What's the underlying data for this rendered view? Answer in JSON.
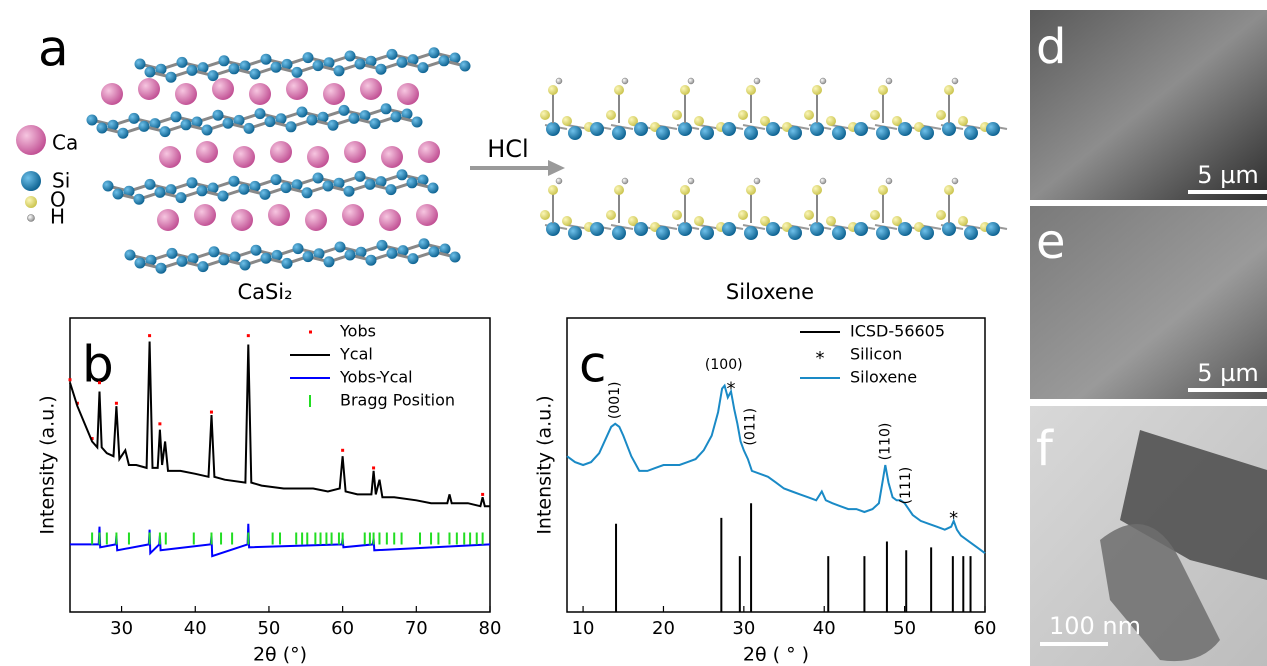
{
  "panel_a": {
    "label": "a",
    "legend": [
      "Ca",
      "Si",
      "O",
      "H"
    ],
    "arrow_label": "HCl",
    "left_caption": "CaSi₂",
    "right_caption": "Siloxene"
  },
  "micrographs": [
    {
      "label": "d",
      "scale_bar": "5 µm"
    },
    {
      "label": "e",
      "scale_bar": "5 µm"
    },
    {
      "label": "f",
      "scale_bar": "100 nm"
    }
  ],
  "chart_data": [
    {
      "type": "line",
      "panel_label": "b",
      "xlabel": "2θ (°)",
      "ylabel": "Intensity (a.u.)",
      "xlim": [
        23,
        80
      ],
      "xticks": [
        30,
        40,
        50,
        60,
        70,
        80
      ],
      "ylim": [
        0,
        100
      ],
      "legend": "upper right",
      "series": [
        {
          "name": "Yobs",
          "color": "#ff0000",
          "kind": "points",
          "x": [
            23,
            24,
            26,
            27,
            29.3,
            33.8,
            35.2,
            42.2,
            47.2,
            60,
            64.2,
            79
          ],
          "values": [
            79,
            71,
            59,
            78,
            71,
            94,
            64,
            68,
            94,
            55,
            49,
            40
          ]
        },
        {
          "name": "Ycal",
          "color": "#000000",
          "kind": "line",
          "x": [
            23,
            24,
            25,
            26,
            26.7,
            27,
            27.3,
            28,
            28.9,
            29.3,
            29.7,
            30.5,
            31,
            32,
            33.4,
            33.8,
            34.2,
            34.9,
            35.2,
            35.5,
            35.9,
            36.3,
            37,
            38,
            40,
            41.8,
            42.2,
            42.6,
            44,
            46.8,
            47.2,
            47.6,
            49,
            52,
            54,
            56,
            58,
            59.6,
            60,
            60.4,
            62,
            63.9,
            64.2,
            64.5,
            65,
            65.4,
            67,
            70,
            72,
            74.2,
            74.5,
            74.8,
            77,
            78.7,
            79,
            79.3,
            80
          ],
          "values": [
            78,
            70,
            64,
            58,
            56,
            75,
            56,
            54,
            53,
            70,
            52,
            55,
            50,
            50,
            49,
            92,
            49,
            49,
            62,
            50,
            58,
            48,
            48,
            48,
            47,
            46,
            67,
            46,
            45,
            44,
            91,
            44,
            43,
            42,
            42,
            42,
            41,
            42,
            53,
            41,
            40,
            40,
            48,
            40,
            45,
            39,
            39,
            38,
            37,
            37,
            40,
            37,
            37,
            36,
            39,
            36,
            36
          ]
        },
        {
          "name": "Yobs-Ycal",
          "color": "#0000ff",
          "kind": "line",
          "x": [
            23,
            26.9,
            27,
            27.1,
            29.2,
            29.3,
            29.4,
            33.7,
            33.8,
            33.9,
            35.1,
            35.2,
            35.3,
            42.1,
            42.2,
            42.3,
            47.1,
            47.2,
            47.3,
            59.9,
            60,
            60.1,
            64.1,
            64.2,
            64.3,
            80
          ],
          "values": [
            23,
            23,
            29,
            22,
            23,
            26,
            21,
            23,
            28,
            20,
            23,
            26,
            21,
            23,
            26,
            19,
            23,
            30,
            22,
            23,
            25,
            22,
            23,
            25,
            21,
            23
          ]
        },
        {
          "name": "Bragg Position",
          "color": "#22dd22",
          "kind": "ticks",
          "x": [
            26,
            27,
            28,
            29.3,
            31,
            33.8,
            35.2,
            36,
            39.8,
            42.2,
            43.5,
            45,
            47.2,
            50.5,
            51.5,
            53.7,
            54.5,
            55.2,
            56.3,
            57,
            57.8,
            58.5,
            59.5,
            60,
            63,
            63.7,
            64.2,
            65,
            66,
            67,
            68,
            70.5,
            72,
            73,
            74.5,
            75.5,
            76.5,
            77.3,
            78.2,
            79
          ]
        }
      ]
    },
    {
      "type": "line",
      "panel_label": "c",
      "xlabel": "2θ ( ° )",
      "ylabel": "Intensity (a.u.)",
      "xlim": [
        8,
        60
      ],
      "xticks": [
        10,
        20,
        30,
        40,
        50,
        60
      ],
      "ylim": [
        0,
        100
      ],
      "legend": "upper right",
      "series": [
        {
          "name": "ICSD-56605",
          "color": "#000000",
          "kind": "sticks",
          "x": [
            14.1,
            27.2,
            29.5,
            30.9,
            40.5,
            45,
            47.8,
            50.2,
            53.3,
            56,
            57.3,
            58.2
          ],
          "values": [
            30,
            32,
            19,
            37,
            19,
            19,
            24,
            21,
            22,
            19,
            19,
            19
          ]
        },
        {
          "name": "Silicon",
          "color": "#000000",
          "kind": "symbols",
          "marker": "*",
          "x": [
            28.4,
            56.1
          ],
          "values": [
            77,
            33
          ]
        },
        {
          "name": "Siloxene",
          "color": "#1a8ac6",
          "kind": "line",
          "x": [
            8,
            9,
            10,
            11,
            12,
            13,
            13.5,
            14,
            14.5,
            15,
            16,
            17,
            18,
            19,
            20,
            21,
            22,
            23,
            24,
            25,
            26,
            26.8,
            27.3,
            27.6,
            28,
            28.4,
            28.8,
            29.2,
            29.6,
            30,
            30.5,
            31,
            32,
            33,
            34,
            35,
            36,
            37,
            38,
            39,
            39.7,
            40.2,
            41,
            42,
            43,
            44,
            45,
            46,
            46.8,
            47.3,
            47.6,
            48,
            48.5,
            49,
            49.5,
            50,
            51,
            52,
            53,
            54,
            55,
            55.8,
            56.1,
            56.5,
            57,
            58,
            59,
            60
          ],
          "values": [
            53,
            51,
            50,
            51,
            54,
            60,
            63,
            64,
            63,
            60,
            53,
            48,
            48,
            49,
            50,
            50,
            50,
            51,
            52,
            55,
            60,
            68,
            76,
            77,
            73,
            75,
            69,
            64,
            58,
            55,
            52,
            48,
            47,
            46,
            44,
            42,
            41,
            40,
            39,
            38,
            41,
            38,
            37,
            36,
            35,
            35,
            34,
            35,
            37,
            45,
            50,
            44,
            39,
            38,
            38,
            37,
            33,
            31,
            30,
            29,
            28,
            29,
            31,
            28,
            26,
            24,
            22,
            20
          ]
        }
      ],
      "annotations": [
        {
          "text": "(001)",
          "x": 14,
          "y": 72,
          "rotated": true
        },
        {
          "text": "(100)",
          "x": 27.5,
          "y": 84,
          "rotated": false
        },
        {
          "text": "(011)",
          "x": 30.8,
          "y": 63,
          "rotated": true
        },
        {
          "text": "(110)",
          "x": 47.6,
          "y": 58,
          "rotated": true
        },
        {
          "text": "(111)",
          "x": 50.2,
          "y": 43,
          "rotated": true
        }
      ]
    }
  ]
}
